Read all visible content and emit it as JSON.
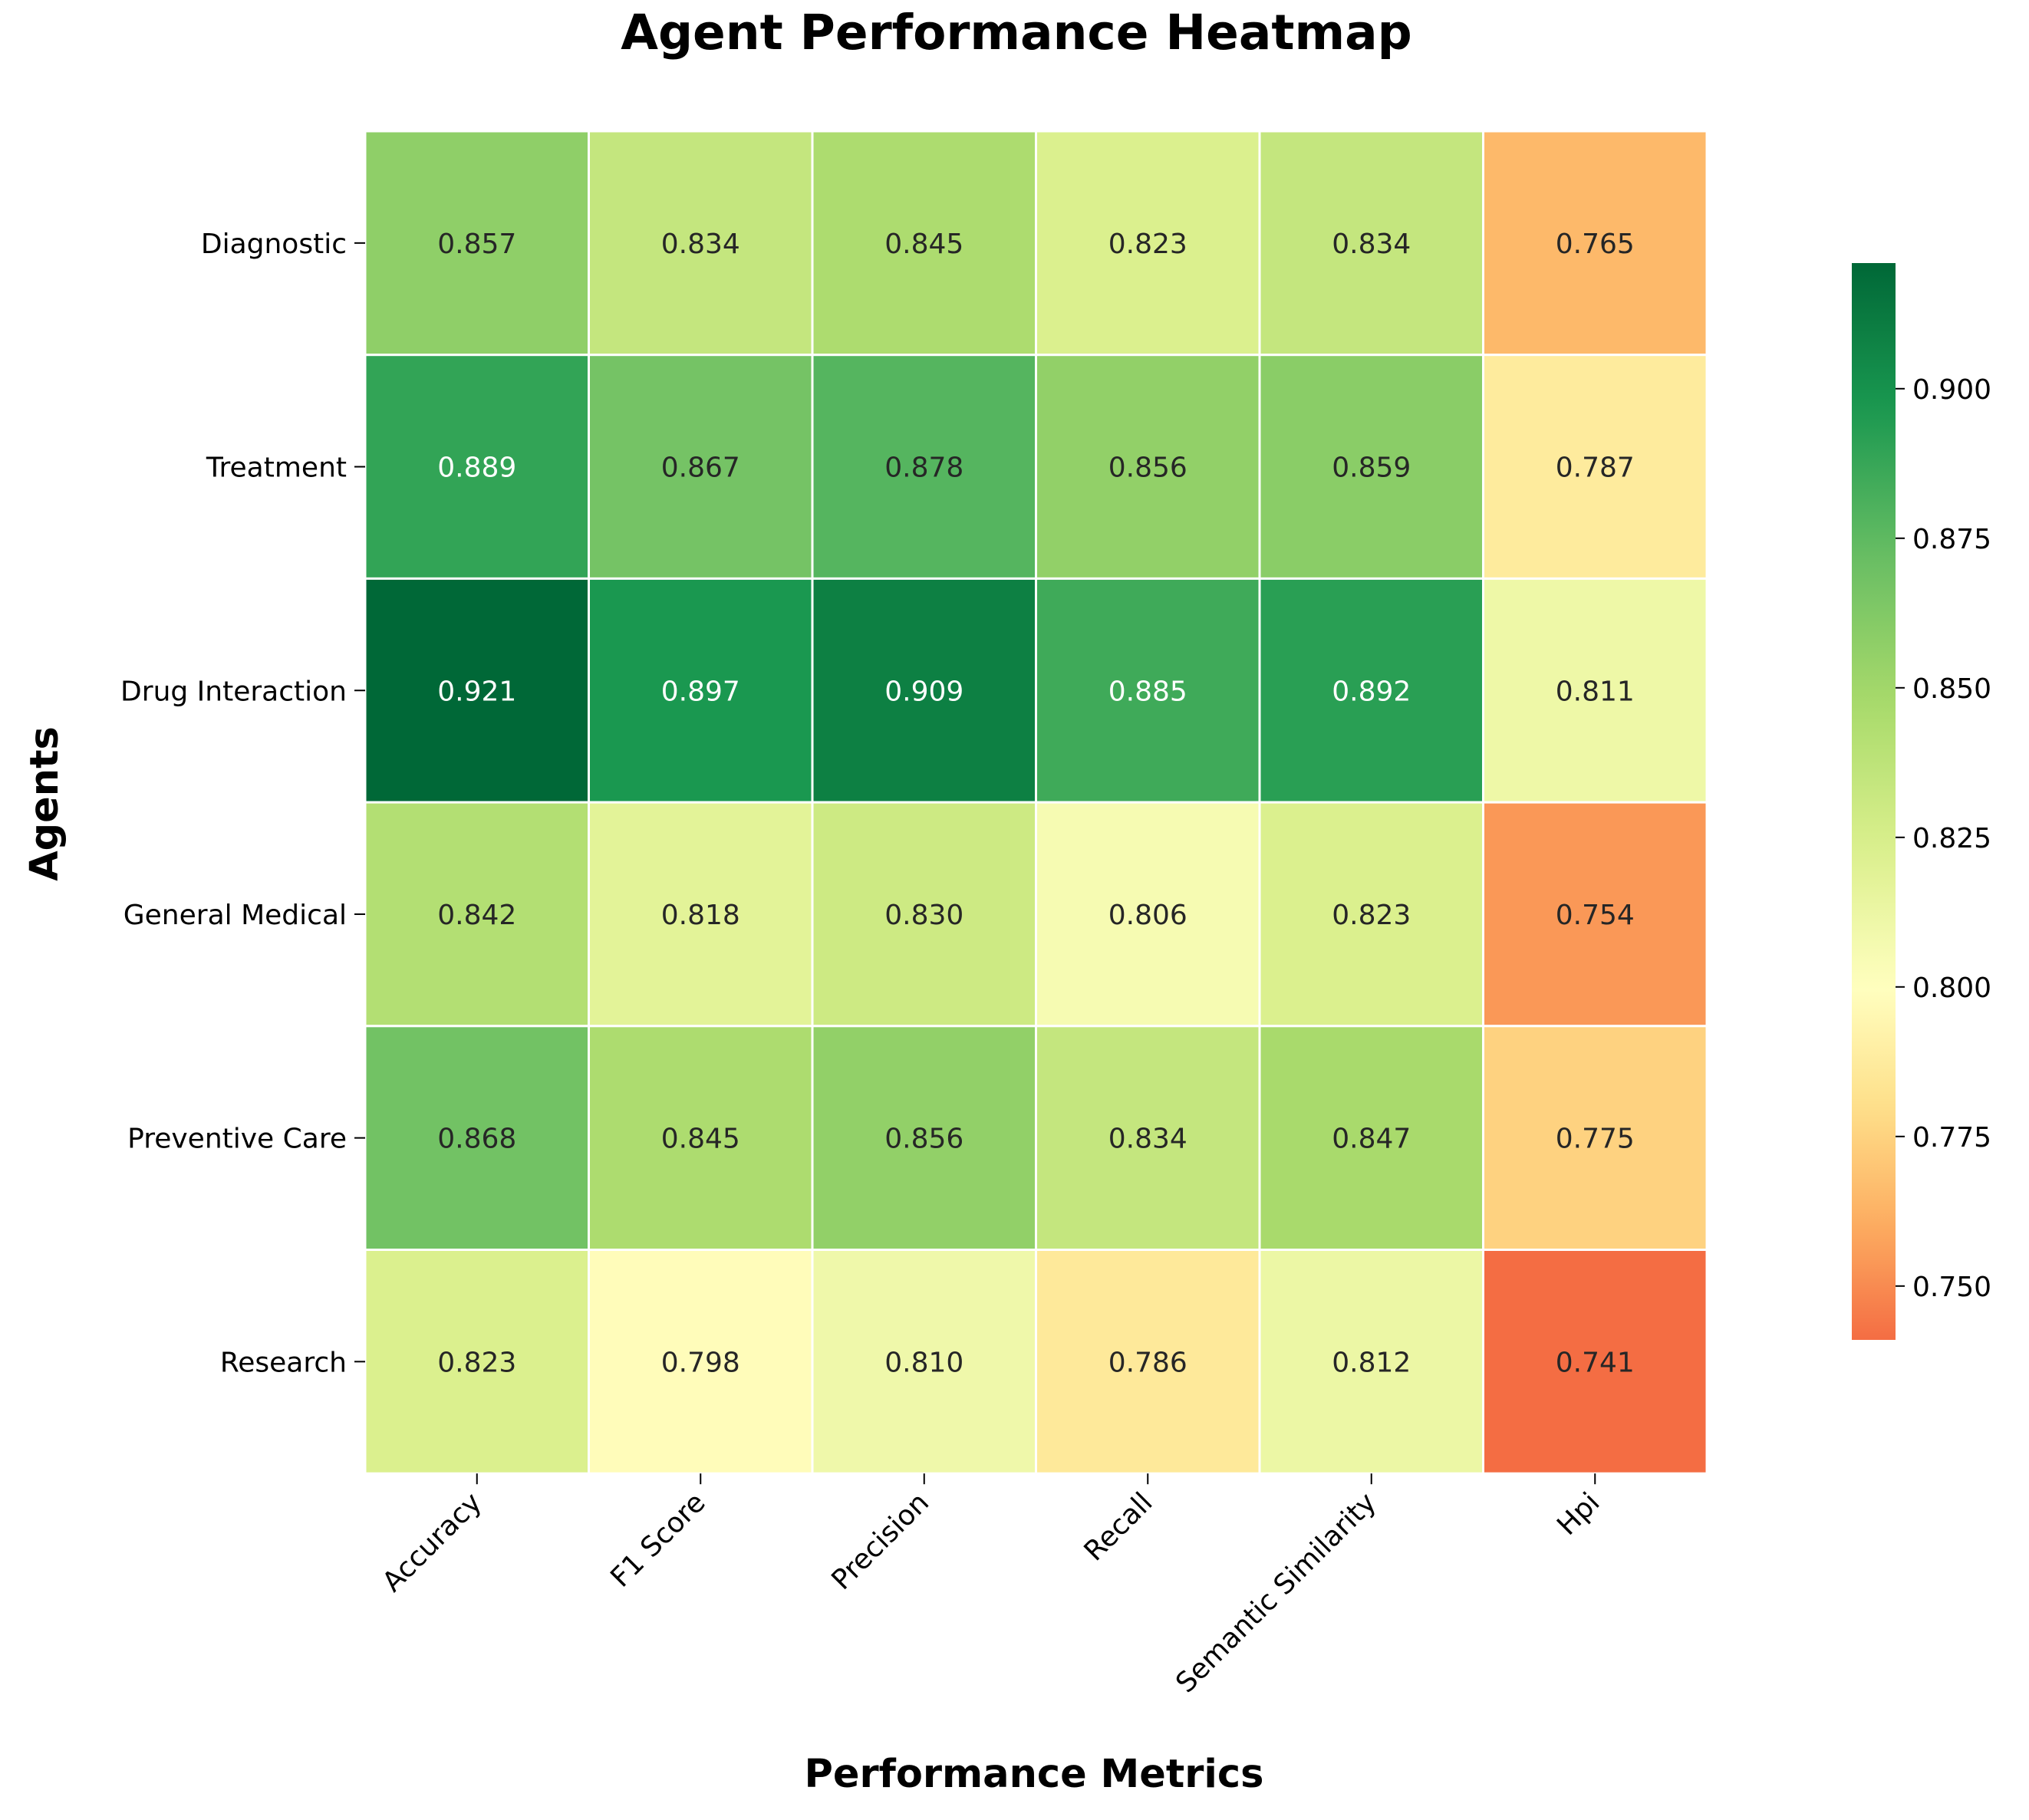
{
  "chart_data": {
    "type": "heatmap",
    "title": "Agent Performance Heatmap",
    "xlabel": "Performance Metrics",
    "ylabel": "Agents",
    "columns": [
      "Accuracy",
      "F1 Score",
      "Precision",
      "Recall",
      "Semantic Similarity",
      "Hpi"
    ],
    "rows": [
      "Diagnostic",
      "Treatment",
      "Drug Interaction",
      "General Medical",
      "Preventive Care",
      "Research"
    ],
    "values": [
      [
        0.857,
        0.834,
        0.845,
        0.823,
        0.834,
        0.765
      ],
      [
        0.889,
        0.867,
        0.878,
        0.856,
        0.859,
        0.787
      ],
      [
        0.921,
        0.897,
        0.909,
        0.885,
        0.892,
        0.811
      ],
      [
        0.842,
        0.818,
        0.83,
        0.806,
        0.823,
        0.754
      ],
      [
        0.868,
        0.845,
        0.856,
        0.834,
        0.847,
        0.775
      ],
      [
        0.823,
        0.798,
        0.81,
        0.786,
        0.812,
        0.741
      ]
    ],
    "colormap": "RdYlGn",
    "vmin": 0.741,
    "vmax": 0.921,
    "colorbar_ticks": [
      "0.750",
      "0.775",
      "0.800",
      "0.825",
      "0.850",
      "0.875",
      "0.900"
    ],
    "colorbar_tick_values": [
      0.75,
      0.775,
      0.8,
      0.825,
      0.85,
      0.875,
      0.9
    ],
    "value_format": "3 decimals",
    "grid": false
  }
}
